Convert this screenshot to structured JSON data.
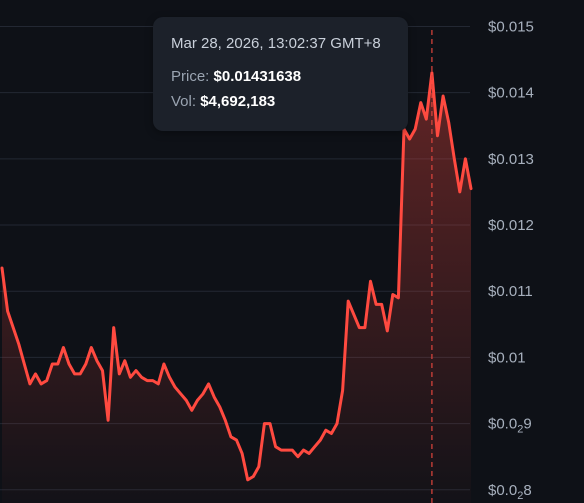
{
  "tooltip": {
    "date": "Mar 28, 2026, 13:02:37 GMT+8",
    "price_label": "Price:",
    "price_value": "$0.01431638",
    "vol_label": "Vol:",
    "vol_value": "$4,692,183"
  },
  "colors": {
    "background": "#0e1117",
    "line": "#ff4a40",
    "crosshair": "#e0453c",
    "grid": "#232833"
  },
  "chart_data": {
    "type": "area",
    "title": "",
    "xlabel": "",
    "ylabel": "",
    "y_axis_position": "right",
    "grid": true,
    "ylim": [
      0.0078,
      0.0154
    ],
    "y_ticks": [
      {
        "value": 0.015,
        "label": "$0.015"
      },
      {
        "value": 0.014,
        "label": "$0.014"
      },
      {
        "value": 0.013,
        "label": "$0.013"
      },
      {
        "value": 0.012,
        "label": "$0.012"
      },
      {
        "value": 0.011,
        "label": "$0.011"
      },
      {
        "value": 0.01,
        "label": "$0.01"
      },
      {
        "value": 0.009,
        "label": "$0.0",
        "sub": "2",
        "tail": "9"
      },
      {
        "value": 0.008,
        "label": "$0.0",
        "sub": "2",
        "tail": "8"
      }
    ],
    "series": [
      {
        "values": [
          0.01135,
          0.0107,
          0.01045,
          0.0102,
          0.0099,
          0.0096,
          0.00975,
          0.0096,
          0.00965,
          0.0099,
          0.0099,
          0.01015,
          0.0099,
          0.00975,
          0.00975,
          0.0099,
          0.01015,
          0.00995,
          0.0098,
          0.00905,
          0.01045,
          0.00975,
          0.00995,
          0.0097,
          0.0098,
          0.0097,
          0.00965,
          0.00965,
          0.0096,
          0.0099,
          0.0097,
          0.00955,
          0.00945,
          0.00935,
          0.0092,
          0.00935,
          0.00945,
          0.0096,
          0.0094,
          0.00925,
          0.00905,
          0.0088,
          0.00875,
          0.00855,
          0.00815,
          0.0082,
          0.00835,
          0.009,
          0.009,
          0.00865,
          0.0086,
          0.0086,
          0.0086,
          0.0085,
          0.0086,
          0.00855,
          0.00865,
          0.00875,
          0.0089,
          0.00885,
          0.009,
          0.0095,
          0.01085,
          0.01065,
          0.01045,
          0.01045,
          0.01115,
          0.0108,
          0.0108,
          0.0104,
          0.01095,
          0.0109,
          0.01345,
          0.0133,
          0.01345,
          0.01385,
          0.0136,
          0.0143,
          0.01335,
          0.01395,
          0.01355,
          0.013,
          0.0125,
          0.013,
          0.01255
        ]
      }
    ],
    "highlight_index": 77
  }
}
